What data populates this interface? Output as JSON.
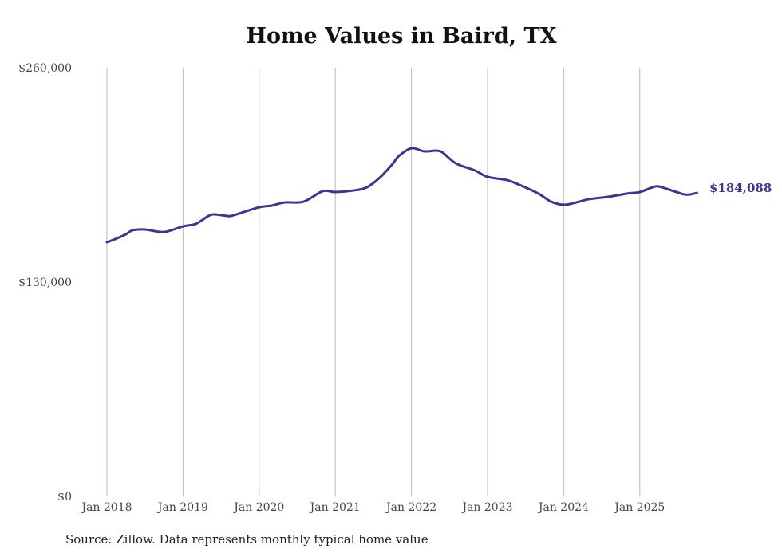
{
  "chart_data": {
    "type": "line",
    "title": "Home Values in Baird, TX",
    "source": "Source: Zillow. Data represents monthly typical home value",
    "xlabel": "",
    "ylabel": "",
    "ylim": [
      0,
      260000
    ],
    "yticks": [
      0,
      130000,
      260000
    ],
    "ytick_labels": [
      "$0",
      "$130,000",
      "$260,000"
    ],
    "xtick_labels": [
      "Jan 2018",
      "Jan 2019",
      "Jan 2020",
      "Jan 2021",
      "Jan 2022",
      "Jan 2023",
      "Jan 2024",
      "Jan 2025"
    ],
    "grid": "vertical",
    "line_color": "#3d3592",
    "end_label": "$184,088",
    "series": [
      {
        "name": "Typical home value",
        "points": [
          [
            "2018-01",
            154200
          ],
          [
            "2018-02",
            155600
          ],
          [
            "2018-04",
            159000
          ],
          [
            "2018-05",
            161400
          ],
          [
            "2018-07",
            161900
          ],
          [
            "2018-10",
            160400
          ],
          [
            "2019-01",
            163800
          ],
          [
            "2019-03",
            165300
          ],
          [
            "2019-05",
            170100
          ],
          [
            "2019-06",
            171100
          ],
          [
            "2019-08",
            170100
          ],
          [
            "2019-09",
            170600
          ],
          [
            "2020-01",
            175400
          ],
          [
            "2020-03",
            176400
          ],
          [
            "2020-05",
            178300
          ],
          [
            "2020-08",
            178800
          ],
          [
            "2020-11",
            185100
          ],
          [
            "2021-01",
            184600
          ],
          [
            "2021-04",
            185600
          ],
          [
            "2021-06",
            187500
          ],
          [
            "2021-08",
            193300
          ],
          [
            "2021-10",
            201500
          ],
          [
            "2021-11",
            206400
          ],
          [
            "2022-01",
            211200
          ],
          [
            "2022-03",
            209300
          ],
          [
            "2022-05",
            209700
          ],
          [
            "2022-06",
            208300
          ],
          [
            "2022-08",
            202000
          ],
          [
            "2022-11",
            197700
          ],
          [
            "2023-01",
            193800
          ],
          [
            "2023-04",
            191900
          ],
          [
            "2023-06",
            189000
          ],
          [
            "2023-09",
            183700
          ],
          [
            "2023-11",
            178800
          ],
          [
            "2024-01",
            176900
          ],
          [
            "2024-03",
            178300
          ],
          [
            "2024-05",
            180300
          ],
          [
            "2024-08",
            181700
          ],
          [
            "2024-11",
            183700
          ],
          [
            "2025-01",
            184600
          ],
          [
            "2025-03",
            187500
          ],
          [
            "2025-04",
            188000
          ],
          [
            "2025-06",
            185600
          ],
          [
            "2025-08",
            183200
          ],
          [
            "2025-09",
            183200
          ],
          [
            "2025-10",
            184088
          ]
        ]
      }
    ]
  }
}
